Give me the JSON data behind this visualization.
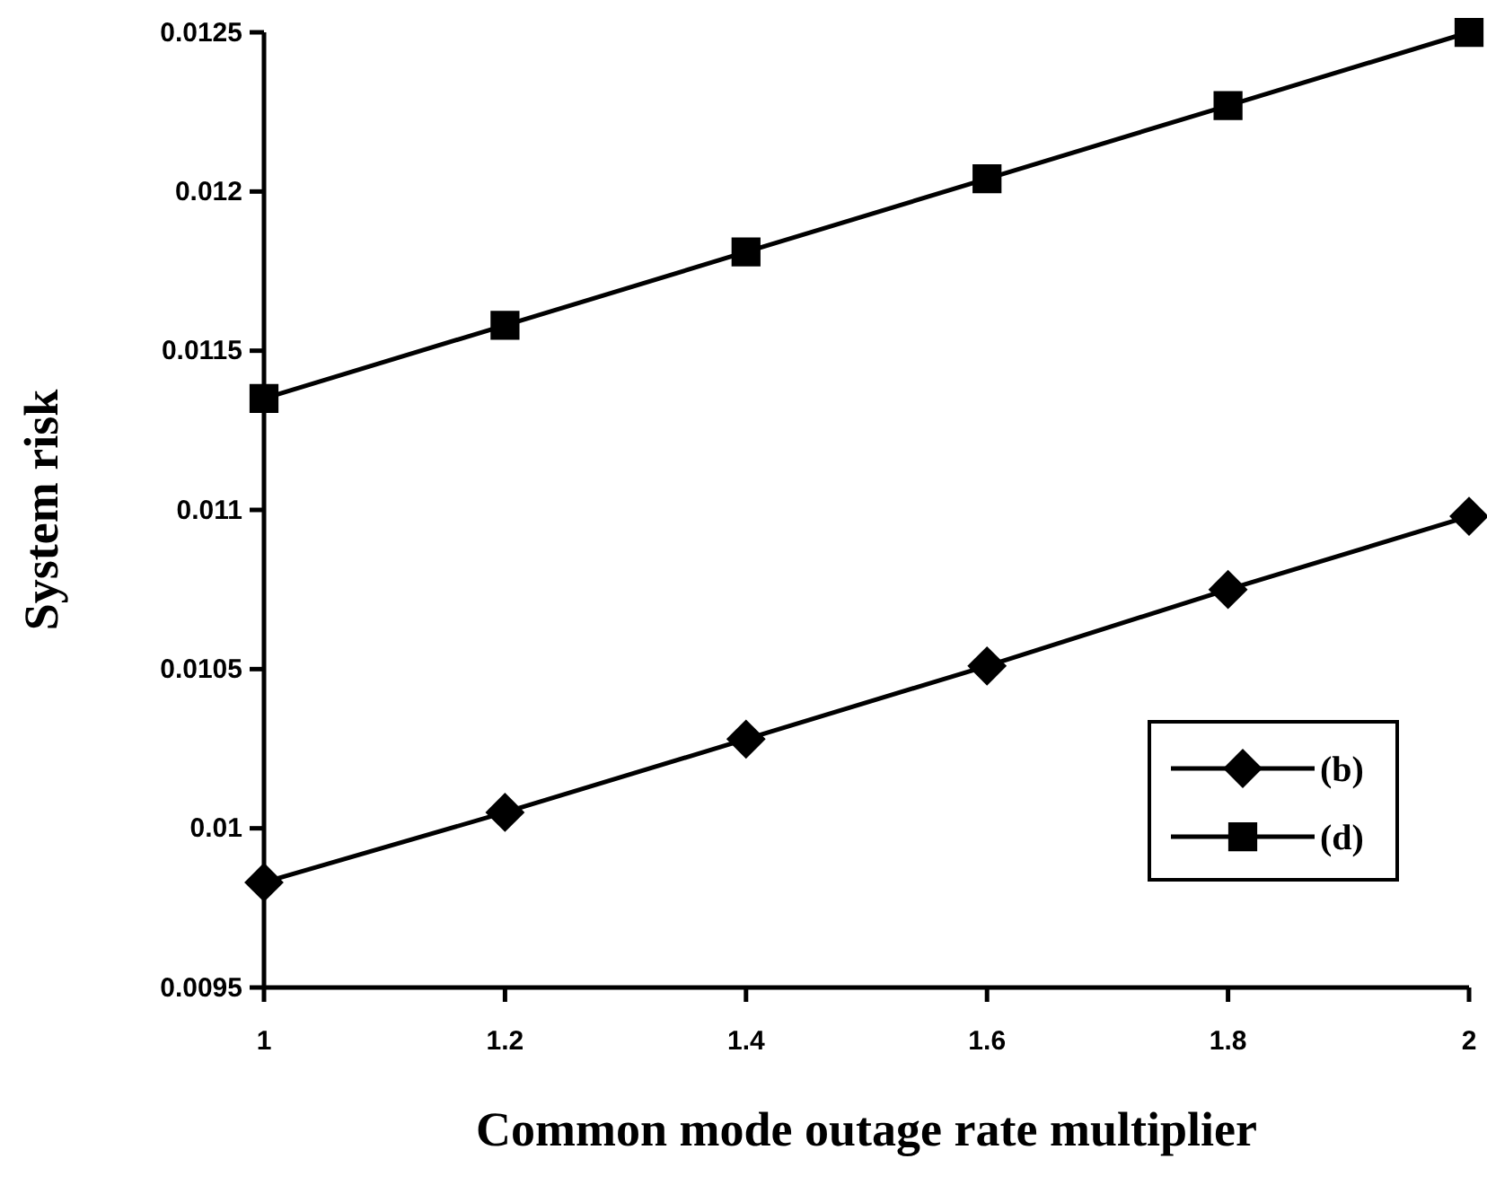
{
  "chart_data": {
    "type": "line",
    "xlabel": "Common mode outage rate multiplier",
    "ylabel": "System risk",
    "x": [
      1,
      1.2,
      1.4,
      1.6,
      1.8,
      2
    ],
    "series": [
      {
        "name": "(b)",
        "color": "#000000",
        "marker": "diamond",
        "values": [
          0.00983,
          0.01005,
          0.01028,
          0.01051,
          0.01075,
          0.01098
        ]
      },
      {
        "name": "(d)",
        "color": "#000000",
        "marker": "square",
        "values": [
          0.01135,
          0.01158,
          0.01181,
          0.01204,
          0.01227,
          0.0125
        ]
      }
    ],
    "xlim": [
      1,
      2
    ],
    "xticks": [
      1,
      1.2,
      1.4,
      1.6,
      1.8,
      2
    ],
    "ylim": [
      0.0095,
      0.0125
    ],
    "yticks": [
      0.0095,
      0.01,
      0.0105,
      0.011,
      0.0115,
      0.012,
      0.0125
    ],
    "grid": false,
    "legend": "bottom right",
    "line_style": "solid"
  }
}
